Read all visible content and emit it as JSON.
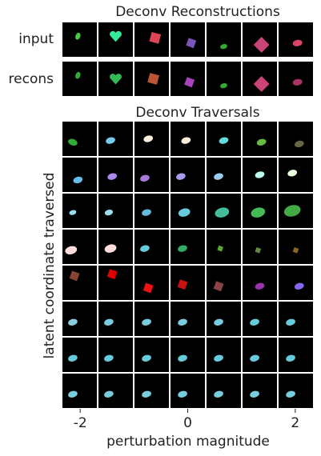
{
  "top_panel": {
    "title": "Deconv Reconstructions",
    "row_labels": [
      "input",
      "recons"
    ]
  },
  "bottom_panel": {
    "title": "Deconv Traversals",
    "ylabel": "latent coordinate traversed",
    "xlabel": "perturbation magnitude",
    "xlim": [
      -2.33,
      2.33
    ],
    "xticks": [
      -2,
      0,
      2
    ]
  }
}
